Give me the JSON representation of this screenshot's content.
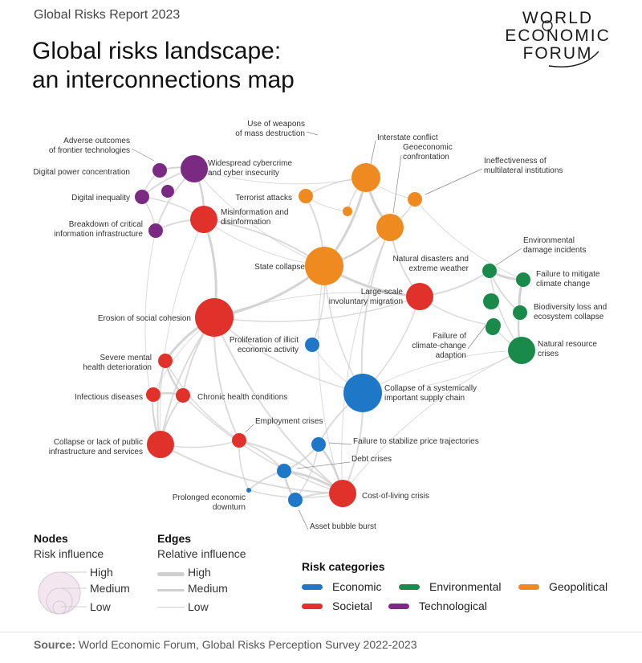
{
  "header": {
    "report_label": "Global Risks Report 2023",
    "title_line1": "Global risks landscape:",
    "title_line2": "an interconnections map"
  },
  "logo": {
    "line1": "WORLD",
    "line2": "ECONOMIC",
    "line3": "FORUM"
  },
  "colors": {
    "economic": "#1f77c8",
    "environmental": "#1a8a4a",
    "geopolitical": "#ee8a1f",
    "societal": "#e1312b",
    "technological": "#7b2a83",
    "edge": "#cfcfcf"
  },
  "nodes": [
    {
      "id": "adverse-outcomes",
      "label": "Adverse outcomes\nof frontier technologies",
      "category": "technological",
      "influence": "low"
    },
    {
      "id": "digital-power",
      "label": "Digital power concentration",
      "category": "technological",
      "influence": "low"
    },
    {
      "id": "digital-inequality",
      "label": "Digital inequality",
      "category": "technological",
      "influence": "low"
    },
    {
      "id": "breakdown-info",
      "label": "Breakdown of critical\ninformation infrastructure",
      "category": "technological",
      "influence": "low"
    },
    {
      "id": "cybercrime",
      "label": "Widespread cybercrime\nand cyber insecurity",
      "category": "technological",
      "influence": "medium"
    },
    {
      "id": "misinformation",
      "label": "Misinformation and\ndisinformation",
      "category": "societal",
      "influence": "medium"
    },
    {
      "id": "wmd",
      "label": "Use of weapons\nof mass destruction",
      "category": "geopolitical",
      "influence": "low"
    },
    {
      "id": "interstate",
      "label": "Interstate conflict",
      "category": "geopolitical",
      "influence": "medium"
    },
    {
      "id": "geoeconomic",
      "label": "Geoeconomic\nconfrontation",
      "category": "geopolitical",
      "influence": "medium"
    },
    {
      "id": "terrorist",
      "label": "Terrorist attacks",
      "category": "geopolitical",
      "influence": "low"
    },
    {
      "id": "multilateral",
      "label": "Ineffectiveness of\nmultilateral institutions",
      "category": "geopolitical",
      "influence": "low"
    },
    {
      "id": "state-collapse",
      "label": "State collapse",
      "category": "geopolitical",
      "influence": "high"
    },
    {
      "id": "env-damage",
      "label": "Environmental\ndamage incidents",
      "category": "environmental",
      "influence": "low"
    },
    {
      "id": "natural-disasters",
      "label": "Natural disasters and\nextreme weather",
      "category": "environmental",
      "influence": "low"
    },
    {
      "id": "climate-mitigate",
      "label": "Failure to mitigate\nclimate change",
      "category": "environmental",
      "influence": "low"
    },
    {
      "id": "biodiversity",
      "label": "Biodiversity loss and\necosystem collapse",
      "category": "environmental",
      "influence": "low"
    },
    {
      "id": "climate-adapt",
      "label": "Failure of\nclimate-change\nadaption",
      "category": "environmental",
      "influence": "low"
    },
    {
      "id": "natural-resource",
      "label": "Natural resource\ncrises",
      "category": "environmental",
      "influence": "medium"
    },
    {
      "id": "migration",
      "label": "Large-scale\ninvoluntary migration",
      "category": "societal",
      "influence": "medium"
    },
    {
      "id": "erosion",
      "label": "Erosion of social cohesion",
      "category": "societal",
      "influence": "high"
    },
    {
      "id": "illicit",
      "label": "Proliferation of illicit\neconomic activity",
      "category": "economic",
      "influence": "low"
    },
    {
      "id": "mental-health",
      "label": "Severe mental\nhealth deterioration",
      "category": "societal",
      "influence": "low"
    },
    {
      "id": "infectious",
      "label": "Infectious diseases",
      "category": "societal",
      "influence": "low"
    },
    {
      "id": "chronic",
      "label": "Chronic health conditions",
      "category": "societal",
      "influence": "low"
    },
    {
      "id": "supply-chain",
      "label": "Collapse of a systemically\nimportant supply chain",
      "category": "economic",
      "influence": "high"
    },
    {
      "id": "public-infra",
      "label": "Collapse or lack of public\ninfrastructure and services",
      "category": "societal",
      "influence": "medium"
    },
    {
      "id": "employment",
      "label": "Employment crises",
      "category": "societal",
      "influence": "low"
    },
    {
      "id": "price",
      "label": "Failure to stabilize price trajectories",
      "category": "economic",
      "influence": "low"
    },
    {
      "id": "debt",
      "label": "Debt crises",
      "category": "economic",
      "influence": "low"
    },
    {
      "id": "prolonged",
      "label": "Prolonged economic\ndownturn",
      "category": "economic",
      "influence": "low"
    },
    {
      "id": "cost-living",
      "label": "Cost-of-living crisis",
      "category": "societal",
      "influence": "medium"
    },
    {
      "id": "asset-bubble",
      "label": "Asset bubble burst",
      "category": "economic",
      "influence": "low"
    }
  ],
  "legend": {
    "nodes_title": "Nodes",
    "nodes_sub": "Risk influence",
    "edges_title": "Edges",
    "edges_sub": "Relative influence",
    "high": "High",
    "medium": "Medium",
    "low": "Low",
    "categories_title": "Risk categories",
    "categories": [
      {
        "key": "economic",
        "label": "Economic"
      },
      {
        "key": "environmental",
        "label": "Environmental"
      },
      {
        "key": "geopolitical",
        "label": "Geopolitical"
      },
      {
        "key": "societal",
        "label": "Societal"
      },
      {
        "key": "technological",
        "label": "Technological"
      }
    ]
  },
  "source": {
    "label": "Source:",
    "text": " World Economic Forum, Global Risks Perception Survey 2022-2023"
  }
}
